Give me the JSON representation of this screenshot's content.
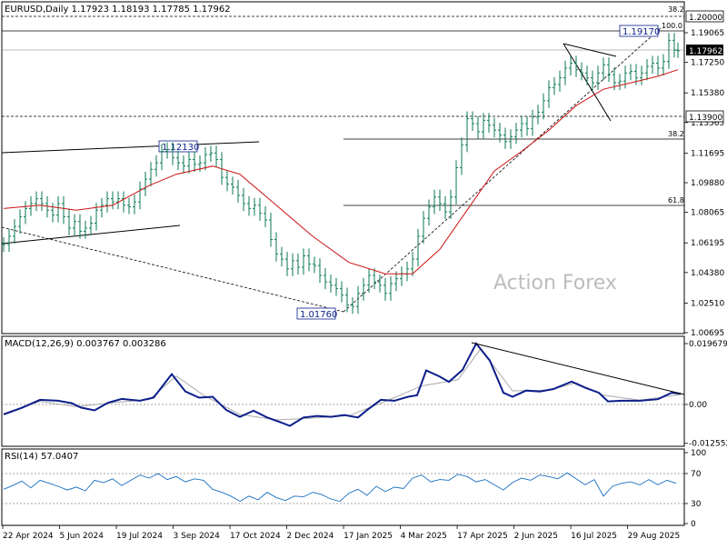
{
  "chart_data": [
    {
      "type": "candlestick",
      "title": "EURUSD,Daily  1.17923 1.18193 1.17785 1.17962",
      "ylim": [
        1.0,
        1.215
      ],
      "x_ticks": [
        "22 Apr 2024",
        "5 Jun 2024",
        "19 Jul 2024",
        "3 Sep 2024",
        "17 Oct 2024",
        "2 Dec 2024",
        "17 Jan 2025",
        "4 Mar 2025",
        "17 Apr 2025",
        "2 Jun 2025",
        "16 Jul 2025",
        "29 Aug 2025"
      ],
      "y_ticks": [
        "1.19065",
        "1.17250",
        "1.15380",
        "1.13565",
        "1.11695",
        "1.09880",
        "1.08065",
        "1.06195",
        "1.04380",
        "1.02510",
        "1.00695"
      ],
      "price_labels": {
        "top": "1.20000",
        "upper": "1.19170",
        "last": "1.17962",
        "support": "1.13900"
      },
      "annotations": {
        "high": "1.19170",
        "low": "1.01760",
        "mid_high": "1.12130",
        "fib_top_382": "38.2",
        "fib_top_100": "100.0",
        "fib_382": "38.2",
        "fib_618": "61.8"
      },
      "watermark": "Action Forex",
      "close_path": [
        [
          0,
          1.061
        ],
        [
          6,
          1.066
        ],
        [
          12,
          1.072
        ],
        [
          18,
          1.078
        ],
        [
          24,
          1.083
        ],
        [
          30,
          1.086
        ],
        [
          36,
          1.089
        ],
        [
          42,
          1.086
        ],
        [
          48,
          1.082
        ],
        [
          54,
          1.079
        ],
        [
          60,
          1.086
        ],
        [
          66,
          1.078
        ],
        [
          72,
          1.071
        ],
        [
          78,
          1.075
        ],
        [
          84,
          1.069
        ],
        [
          90,
          1.071
        ],
        [
          96,
          1.074
        ],
        [
          102,
          1.082
        ],
        [
          108,
          1.085
        ],
        [
          114,
          1.089
        ],
        [
          120,
          1.087
        ],
        [
          126,
          1.089
        ],
        [
          132,
          1.085
        ],
        [
          138,
          1.084
        ],
        [
          144,
          1.087
        ],
        [
          150,
          1.095
        ],
        [
          156,
          1.101
        ],
        [
          162,
          1.107
        ],
        [
          168,
          1.111
        ],
        [
          174,
          1.118
        ],
        [
          180,
          1.119
        ],
        [
          186,
          1.114
        ],
        [
          192,
          1.111
        ],
        [
          198,
          1.109
        ],
        [
          204,
          1.113
        ],
        [
          210,
          1.11
        ],
        [
          216,
          1.111
        ],
        [
          222,
          1.116
        ],
        [
          228,
          1.117
        ],
        [
          234,
          1.113
        ],
        [
          240,
          1.102
        ],
        [
          246,
          1.098
        ],
        [
          252,
          1.096
        ],
        [
          258,
          1.091
        ],
        [
          264,
          1.086
        ],
        [
          270,
          1.083
        ],
        [
          276,
          1.085
        ],
        [
          282,
          1.08
        ],
        [
          288,
          1.076
        ],
        [
          294,
          1.064
        ],
        [
          300,
          1.055
        ],
        [
          306,
          1.052
        ],
        [
          312,
          1.046
        ],
        [
          318,
          1.051
        ],
        [
          324,
          1.047
        ],
        [
          330,
          1.054
        ],
        [
          336,
          1.049
        ],
        [
          342,
          1.048
        ],
        [
          348,
          1.042
        ],
        [
          354,
          1.038
        ],
        [
          360,
          1.036
        ],
        [
          366,
          1.034
        ],
        [
          372,
          1.03
        ],
        [
          378,
          1.024
        ],
        [
          384,
          1.023
        ],
        [
          390,
          1.031
        ],
        [
          396,
          1.036
        ],
        [
          402,
          1.042
        ],
        [
          408,
          1.038
        ],
        [
          414,
          1.036
        ],
        [
          420,
          1.031
        ],
        [
          426,
          1.037
        ],
        [
          432,
          1.04
        ],
        [
          438,
          1.043
        ],
        [
          444,
          1.046
        ],
        [
          450,
          1.052
        ],
        [
          456,
          1.066
        ],
        [
          462,
          1.077
        ],
        [
          468,
          1.084
        ],
        [
          474,
          1.09
        ],
        [
          480,
          1.086
        ],
        [
          486,
          1.081
        ],
        [
          492,
          1.09
        ],
        [
          498,
          1.108
        ],
        [
          504,
          1.122
        ],
        [
          510,
          1.138
        ],
        [
          516,
          1.135
        ],
        [
          522,
          1.13
        ],
        [
          528,
          1.137
        ],
        [
          534,
          1.134
        ],
        [
          540,
          1.131
        ],
        [
          546,
          1.128
        ],
        [
          552,
          1.124
        ],
        [
          558,
          1.127
        ],
        [
          564,
          1.131
        ],
        [
          570,
          1.135
        ],
        [
          576,
          1.132
        ],
        [
          582,
          1.139
        ],
        [
          588,
          1.142
        ],
        [
          594,
          1.149
        ],
        [
          600,
          1.157
        ],
        [
          606,
          1.159
        ],
        [
          612,
          1.163
        ],
        [
          618,
          1.169
        ],
        [
          624,
          1.172
        ],
        [
          630,
          1.168
        ],
        [
          636,
          1.166
        ],
        [
          642,
          1.163
        ],
        [
          648,
          1.16
        ],
        [
          654,
          1.166
        ],
        [
          660,
          1.171
        ],
        [
          666,
          1.165
        ],
        [
          672,
          1.16
        ],
        [
          678,
          1.161
        ],
        [
          684,
          1.166
        ],
        [
          690,
          1.167
        ],
        [
          696,
          1.163
        ],
        [
          702,
          1.166
        ],
        [
          708,
          1.17
        ],
        [
          714,
          1.172
        ],
        [
          720,
          1.169
        ],
        [
          726,
          1.173
        ],
        [
          732,
          1.186
        ],
        [
          738,
          1.18
        ],
        [
          742,
          1.1796
        ]
      ],
      "ma_path": [
        [
          0,
          1.083
        ],
        [
          40,
          1.085
        ],
        [
          80,
          1.082
        ],
        [
          120,
          1.085
        ],
        [
          160,
          1.097
        ],
        [
          190,
          1.104
        ],
        [
          230,
          1.109
        ],
        [
          260,
          1.104
        ],
        [
          300,
          1.085
        ],
        [
          340,
          1.066
        ],
        [
          380,
          1.05
        ],
        [
          420,
          1.043
        ],
        [
          450,
          1.043
        ],
        [
          480,
          1.058
        ],
        [
          510,
          1.082
        ],
        [
          540,
          1.106
        ],
        [
          570,
          1.118
        ],
        [
          600,
          1.131
        ],
        [
          630,
          1.146
        ],
        [
          660,
          1.156
        ],
        [
          690,
          1.16
        ],
        [
          720,
          1.164
        ],
        [
          742,
          1.168
        ]
      ]
    },
    {
      "type": "line",
      "title": "MACD(12,26,9) 0.003767 0.003286",
      "y_ticks": [
        "0.019679",
        "0.00",
        "-0.012552"
      ],
      "macd_path": [
        [
          0,
          -0.0032
        ],
        [
          20,
          -0.0011
        ],
        [
          40,
          0.0015
        ],
        [
          60,
          0.0012
        ],
        [
          75,
          0.0004
        ],
        [
          85,
          -0.001
        ],
        [
          100,
          -0.0019
        ],
        [
          115,
          0.0006
        ],
        [
          130,
          0.0018
        ],
        [
          150,
          0.0012
        ],
        [
          165,
          0.0022
        ],
        [
          185,
          0.0098
        ],
        [
          200,
          0.0042
        ],
        [
          215,
          0.0022
        ],
        [
          230,
          0.0025
        ],
        [
          245,
          -0.0018
        ],
        [
          260,
          -0.004
        ],
        [
          275,
          -0.002
        ],
        [
          290,
          -0.0042
        ],
        [
          305,
          -0.0058
        ],
        [
          315,
          -0.0069
        ],
        [
          330,
          -0.0042
        ],
        [
          345,
          -0.0037
        ],
        [
          360,
          -0.004
        ],
        [
          375,
          -0.0034
        ],
        [
          390,
          -0.0042
        ],
        [
          400,
          -0.0018
        ],
        [
          415,
          0.0015
        ],
        [
          430,
          0.0012
        ],
        [
          445,
          0.0025
        ],
        [
          455,
          0.003
        ],
        [
          465,
          0.011
        ],
        [
          480,
          0.009
        ],
        [
          490,
          0.0073
        ],
        [
          505,
          0.0112
        ],
        [
          520,
          0.0197
        ],
        [
          535,
          0.0142
        ],
        [
          550,
          0.0038
        ],
        [
          560,
          0.0025
        ],
        [
          575,
          0.0045
        ],
        [
          590,
          0.0042
        ],
        [
          605,
          0.005
        ],
        [
          625,
          0.0074
        ],
        [
          640,
          0.0054
        ],
        [
          655,
          0.0038
        ],
        [
          665,
          0.001
        ],
        [
          680,
          0.0012
        ],
        [
          700,
          0.0012
        ],
        [
          720,
          0.0017
        ],
        [
          735,
          0.0038
        ],
        [
          745,
          0.0035
        ]
      ],
      "signal_path": [
        [
          0,
          -0.0029
        ],
        [
          40,
          0.001
        ],
        [
          80,
          -0.0007
        ],
        [
          120,
          0.0006
        ],
        [
          160,
          0.0016
        ],
        [
          190,
          0.0092
        ],
        [
          220,
          0.003
        ],
        [
          260,
          -0.0032
        ],
        [
          300,
          -0.005
        ],
        [
          340,
          -0.0044
        ],
        [
          380,
          -0.0036
        ],
        [
          420,
          0.001
        ],
        [
          460,
          0.006
        ],
        [
          500,
          0.008
        ],
        [
          525,
          0.018
        ],
        [
          560,
          0.0044
        ],
        [
          600,
          0.0046
        ],
        [
          630,
          0.007
        ],
        [
          660,
          0.003
        ],
        [
          700,
          0.0014
        ],
        [
          745,
          0.0032
        ]
      ]
    },
    {
      "type": "line",
      "title": "RSI(14) 57.0407",
      "y_ticks": [
        "100",
        "70",
        "30",
        "0"
      ],
      "ylim": [
        0,
        100
      ],
      "rsi_path": [
        [
          0,
          49
        ],
        [
          10,
          54
        ],
        [
          20,
          60
        ],
        [
          30,
          51
        ],
        [
          40,
          61
        ],
        [
          50,
          57
        ],
        [
          60,
          53
        ],
        [
          70,
          48
        ],
        [
          80,
          52
        ],
        [
          90,
          47
        ],
        [
          100,
          61
        ],
        [
          110,
          58
        ],
        [
          120,
          63
        ],
        [
          130,
          54
        ],
        [
          140,
          61
        ],
        [
          150,
          68
        ],
        [
          160,
          64
        ],
        [
          170,
          70
        ],
        [
          180,
          62
        ],
        [
          190,
          66
        ],
        [
          200,
          59
        ],
        [
          210,
          63
        ],
        [
          220,
          61
        ],
        [
          230,
          49
        ],
        [
          240,
          45
        ],
        [
          250,
          40
        ],
        [
          260,
          33
        ],
        [
          270,
          40
        ],
        [
          280,
          35
        ],
        [
          290,
          45
        ],
        [
          300,
          38
        ],
        [
          310,
          34
        ],
        [
          320,
          40
        ],
        [
          330,
          39
        ],
        [
          340,
          45
        ],
        [
          350,
          42
        ],
        [
          360,
          36
        ],
        [
          370,
          33
        ],
        [
          380,
          44
        ],
        [
          390,
          49
        ],
        [
          400,
          41
        ],
        [
          410,
          53
        ],
        [
          420,
          46
        ],
        [
          430,
          52
        ],
        [
          440,
          50
        ],
        [
          450,
          64
        ],
        [
          460,
          68
        ],
        [
          470,
          59
        ],
        [
          480,
          62
        ],
        [
          490,
          61
        ],
        [
          500,
          69
        ],
        [
          510,
          66
        ],
        [
          520,
          59
        ],
        [
          530,
          62
        ],
        [
          540,
          55
        ],
        [
          550,
          48
        ],
        [
          560,
          58
        ],
        [
          570,
          64
        ],
        [
          580,
          61
        ],
        [
          590,
          68
        ],
        [
          600,
          66
        ],
        [
          610,
          63
        ],
        [
          620,
          71
        ],
        [
          630,
          63
        ],
        [
          640,
          55
        ],
        [
          650,
          62
        ],
        [
          660,
          40
        ],
        [
          670,
          53
        ],
        [
          680,
          57
        ],
        [
          690,
          59
        ],
        [
          700,
          55
        ],
        [
          710,
          62
        ],
        [
          720,
          55
        ],
        [
          730,
          61
        ],
        [
          740,
          57
        ]
      ]
    }
  ],
  "colors": {
    "up": "#0b7a4f",
    "axis": "#000000",
    "ma": "#cc1111",
    "macd": "#0b1e8a",
    "signal": "#aaaaaa",
    "rsi": "#1a6fc2",
    "grid": "#888888"
  }
}
